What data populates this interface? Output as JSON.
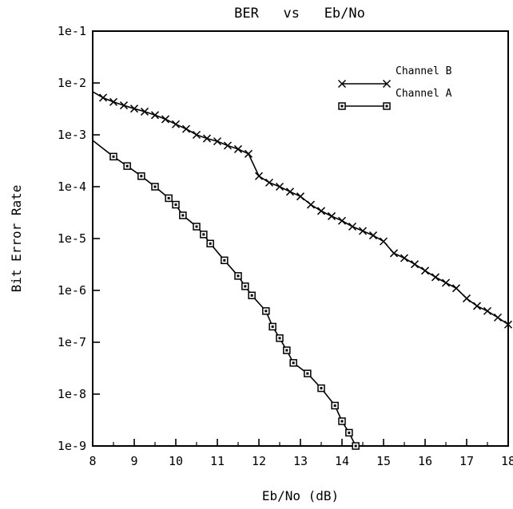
{
  "chart_data": {
    "type": "line",
    "title": "BER   vs   Eb/No",
    "xlabel": "Eb/No (dB)",
    "ylabel": "Bit Error Rate",
    "x_scale": "linear",
    "y_scale": "log",
    "xlim": [
      8,
      18
    ],
    "ylim": [
      1e-09,
      0.1
    ],
    "xticks": [
      8,
      9,
      10,
      11,
      12,
      13,
      14,
      15,
      16,
      17,
      18
    ],
    "xtick_labels": [
      "8",
      "9",
      "10",
      "11",
      "12",
      "13",
      "14",
      "15",
      "16",
      "17",
      "18"
    ],
    "yticks": [
      1e-09,
      1e-08,
      1e-07,
      1e-06,
      1e-05,
      0.0001,
      0.001,
      0.01,
      0.1
    ],
    "ytick_labels": [
      "1e-9",
      "1e-8",
      "1e-7",
      "1e-6",
      "1e-5",
      "1e-4",
      "1e-3",
      "1e-2",
      "1e-1"
    ],
    "grid": false,
    "legend_position": "top-right",
    "series": [
      {
        "name": "Channel B",
        "marker": "x",
        "x": [
          8.0,
          8.25,
          8.5,
          8.75,
          9.0,
          9.25,
          9.5,
          9.75,
          10.0,
          10.25,
          10.5,
          10.75,
          11.0,
          11.25,
          11.5,
          11.75,
          12.0,
          12.25,
          12.5,
          12.75,
          13.0,
          13.25,
          13.5,
          13.75,
          14.0,
          14.25,
          14.5,
          14.75,
          15.0,
          15.25,
          15.5,
          15.75,
          16.0,
          16.25,
          16.5,
          16.75,
          17.0,
          17.25,
          17.5,
          17.75,
          18.0
        ],
        "y": [
          0.0068,
          0.0052,
          0.0043,
          0.0037,
          0.0032,
          0.0028,
          0.0024,
          0.002,
          0.0016,
          0.0013,
          0.001,
          0.00085,
          0.00075,
          0.00062,
          0.00053,
          0.00043,
          0.00016,
          0.00012,
          0.0001,
          8e-05,
          6.5e-05,
          4.5e-05,
          3.4e-05,
          2.7e-05,
          2.2e-05,
          1.7e-05,
          1.4e-05,
          1.15e-05,
          8.8e-06,
          5.2e-06,
          4.2e-06,
          3.2e-06,
          2.4e-06,
          1.8e-06,
          1.4e-06,
          1.1e-06,
          7e-07,
          5e-07,
          4e-07,
          3e-07,
          2.2e-07
        ]
      },
      {
        "name": "Channel A",
        "marker": "square",
        "x": [
          8.0,
          8.5,
          8.83,
          9.17,
          9.5,
          9.83,
          10.0,
          10.17,
          10.5,
          10.67,
          10.83,
          11.17,
          11.5,
          11.67,
          11.83,
          12.17,
          12.33,
          12.5,
          12.67,
          12.83,
          13.17,
          13.5,
          13.83,
          14.0,
          14.17,
          14.33
        ],
        "y": [
          0.00078,
          0.00038,
          0.00025,
          0.00016,
          0.0001,
          6e-05,
          4.5e-05,
          2.8e-05,
          1.7e-05,
          1.2e-05,
          8e-06,
          3.8e-06,
          1.9e-06,
          1.2e-06,
          8e-07,
          4e-07,
          2e-07,
          1.2e-07,
          7e-08,
          4e-08,
          2.5e-08,
          1.3e-08,
          6e-09,
          3e-09,
          1.8e-09,
          1e-09
        ]
      }
    ]
  }
}
